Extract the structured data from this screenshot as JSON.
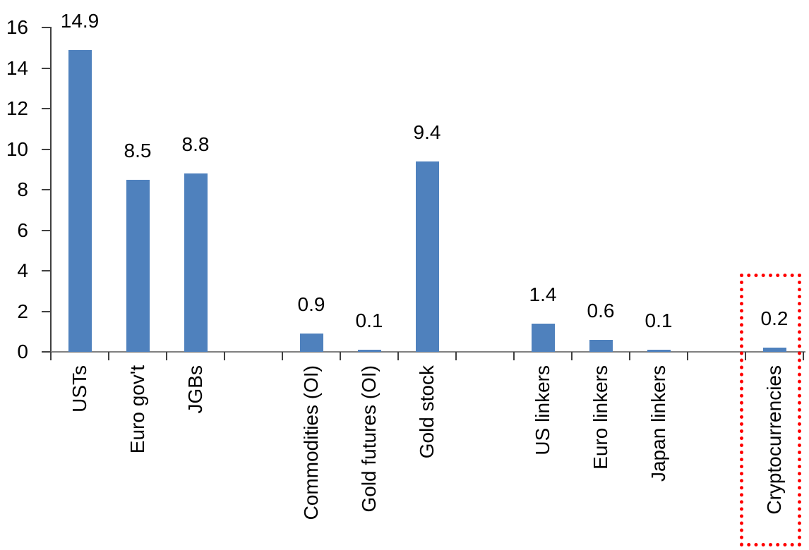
{
  "chart_data": {
    "type": "bar",
    "title": "",
    "xlabel": "",
    "ylabel": "",
    "categories": [
      "USTs",
      "Euro gov't",
      "JGBs",
      "Commodities (OI)",
      "Gold futures (OI)",
      "Gold stock",
      "US linkers",
      "Euro linkers",
      "Japan linkers",
      "Cryptocurrencies"
    ],
    "values": [
      14.9,
      8.5,
      8.8,
      0.9,
      0.1,
      9.4,
      1.4,
      0.6,
      0.1,
      0.2
    ],
    "data_labels": [
      "14.9",
      "8.5",
      "8.8",
      "0.9",
      "0.1",
      "9.4",
      "1.4",
      "0.6",
      "0.1",
      "0.2"
    ],
    "slots": [
      0,
      1,
      2,
      4,
      5,
      6,
      8,
      9,
      10,
      12
    ],
    "total_slots": 13,
    "ylim": [
      0,
      16
    ],
    "yticks": [
      0,
      2,
      4,
      6,
      8,
      10,
      12,
      14,
      16
    ],
    "grid": false,
    "legend_position": "none",
    "highlight": {
      "category": "Cryptocurrencies",
      "style": "dotted-outline-box"
    },
    "colors": {
      "bar": "#4f81bd",
      "highlight": "#ff0000",
      "axis_x": "#808080",
      "axis_y": "#404040",
      "tick": "#404040",
      "text": "#000000"
    }
  }
}
